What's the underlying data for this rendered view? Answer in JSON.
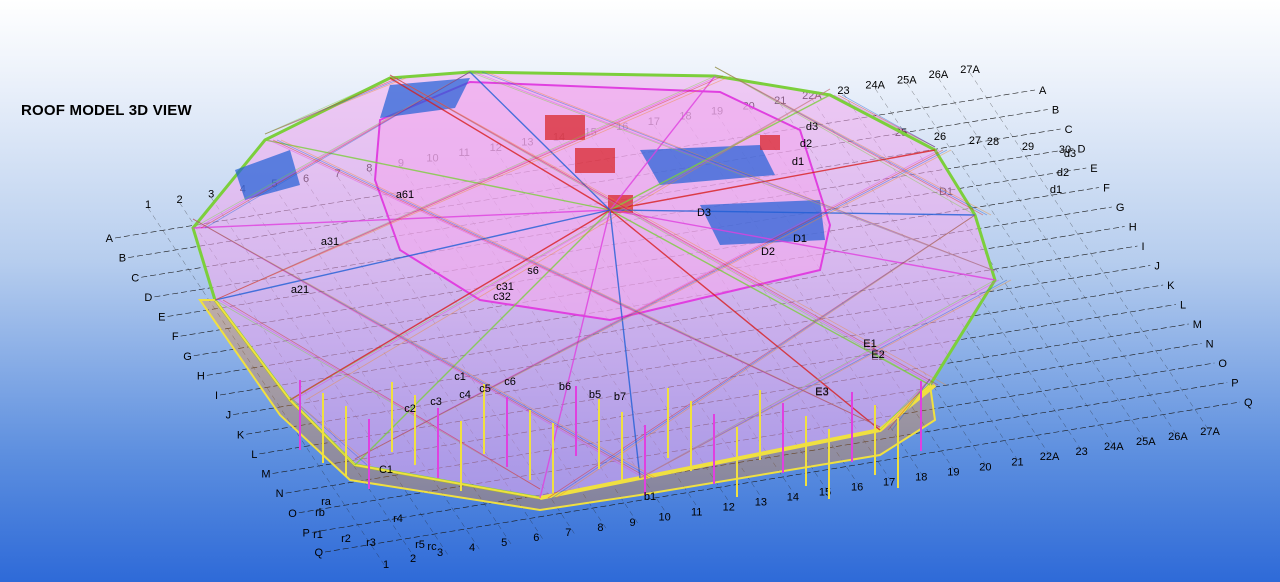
{
  "view_title": "ROOF MODEL 3D VIEW",
  "colors": {
    "background_top": "#ffffff",
    "background_bottom": "#2e6ad8",
    "grid": "#1a1a1a",
    "member_magenta": "#e040e0",
    "member_green": "#7ccf3c",
    "member_red": "#d81e1e",
    "member_blue": "#1f5fd6",
    "member_yellow": "#f0e040",
    "member_orange": "#f08a2a",
    "panel_pink": "#f2a8ee"
  },
  "grid_labels": {
    "left_letters": [
      "A",
      "B",
      "C",
      "D",
      "E",
      "F",
      "G",
      "H",
      "I",
      "J",
      "K",
      "L",
      "M",
      "N",
      "O",
      "P",
      "Q"
    ],
    "right_letters": [
      "A",
      "B",
      "C",
      "D",
      "E",
      "F",
      "G",
      "H",
      "I",
      "J",
      "K",
      "L",
      "M",
      "N",
      "O",
      "P",
      "Q"
    ],
    "top_numbers": [
      "1",
      "2",
      "3",
      "4",
      "5",
      "6",
      "7",
      "8",
      "9",
      "10",
      "11",
      "12",
      "13",
      "14",
      "15",
      "16",
      "17",
      "18",
      "19",
      "20",
      "21",
      "22A",
      "23",
      "24A",
      "25A",
      "26A",
      "27A"
    ],
    "bottom_numbers": [
      "3",
      "4",
      "5",
      "6",
      "7",
      "8",
      "9",
      "10",
      "11",
      "12",
      "13",
      "14",
      "15",
      "16",
      "17",
      "18",
      "19",
      "20",
      "21",
      "22A",
      "23",
      "24A",
      "25A",
      "26A",
      "27A"
    ],
    "bottom_near": [
      "1",
      "2",
      "rc",
      "r5",
      "r4",
      "r3",
      "r2",
      "ra",
      "rb",
      "r1"
    ],
    "right_aux": [
      "25",
      "26",
      "27",
      "28",
      "29",
      "30",
      "d3",
      "d2",
      "d1",
      "D1",
      "E1",
      "E2",
      "E3"
    ]
  },
  "member_labels": [
    "C1",
    "c1",
    "c2",
    "c3",
    "c4",
    "c5",
    "c6",
    "b5",
    "b6",
    "b7",
    "b1",
    "a21",
    "a31",
    "a61",
    "D1",
    "D2",
    "D3",
    "E1",
    "E2",
    "E3",
    "d1",
    "d2",
    "d3",
    "s6",
    "c31",
    "c32"
  ]
}
